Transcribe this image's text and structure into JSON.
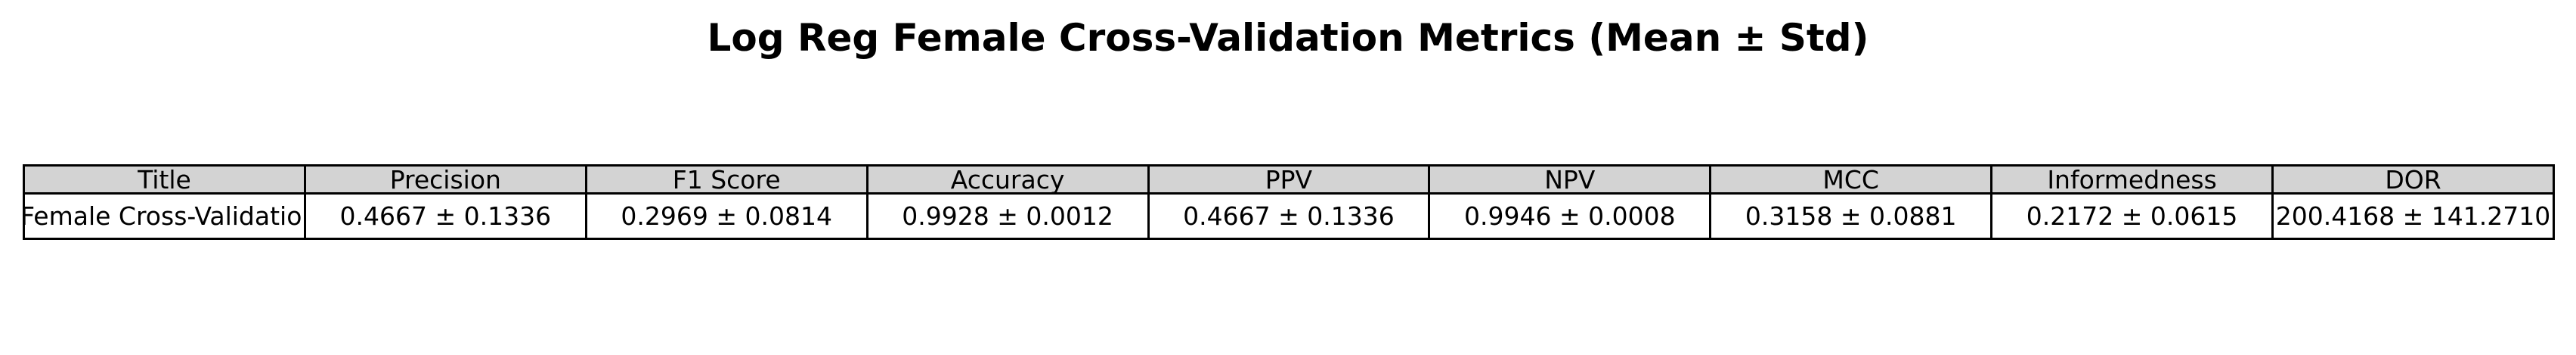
{
  "chart_data": {
    "type": "table",
    "title": "Log Reg Female Cross-Validation Metrics (Mean ± Std)",
    "columns": [
      "Title",
      "Precision",
      "F1 Score",
      "Accuracy",
      "PPV",
      "NPV",
      "MCC",
      "Informedness",
      "DOR"
    ],
    "rows": [
      [
        "Log Reg Female Cross-Validation Metrics",
        "0.4667 ± 0.1336",
        "0.2969 ± 0.0814",
        "0.9928 ± 0.0012",
        "0.4667 ± 0.1336",
        "0.9946 ± 0.0008",
        "0.3158 ± 0.0881",
        "0.2172 ± 0.0615",
        "200.4168 ± 141.2710"
      ]
    ],
    "header_color": "#d3d3d3",
    "cell_color": "#ffffff",
    "border_color": "#000000",
    "grid": true
  }
}
